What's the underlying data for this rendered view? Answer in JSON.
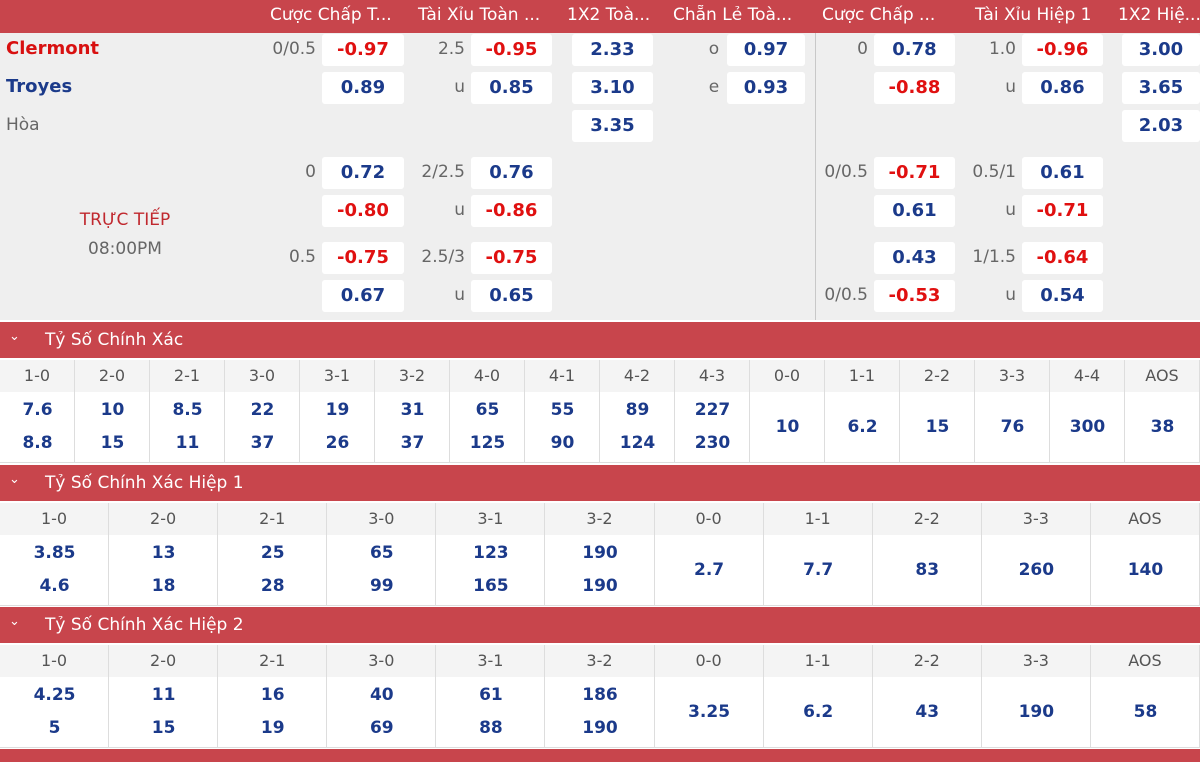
{
  "header": {
    "columns": [
      "Cược Chấp T...",
      "Tài Xỉu Toàn ...",
      "1X2 Toà...",
      "Chẵn Lẻ Toà...",
      "Cược Chấp ...",
      "Tài Xỉu Hiệp 1",
      "1X2 Hiệ..."
    ]
  },
  "match": {
    "home": "Clermont",
    "away": "Troyes",
    "draw": "Hòa",
    "status": "TRỰC TIẾP",
    "time": "08:00PM"
  },
  "odds_rows": [
    [
      "0/0.5",
      "-0.97",
      "2.5",
      "-0.95",
      "2.33",
      "o",
      "0.97",
      "0",
      "0.78",
      "1.0",
      "-0.96",
      "3.00"
    ],
    [
      null,
      "0.89",
      "u",
      "0.85",
      "3.10",
      "e",
      "0.93",
      null,
      "-0.88",
      "u",
      "0.86",
      "3.65"
    ],
    [
      null,
      null,
      null,
      null,
      "3.35",
      null,
      null,
      null,
      null,
      null,
      null,
      "2.03"
    ],
    [
      "0",
      "0.72",
      "2/2.5",
      "0.76",
      null,
      null,
      null,
      "0/0.5",
      "-0.71",
      "0.5/1",
      "0.61",
      null
    ],
    [
      null,
      "-0.80",
      "u",
      "-0.86",
      null,
      null,
      null,
      null,
      "0.61",
      "u",
      "-0.71",
      null
    ],
    [
      "0.5",
      "-0.75",
      "2.5/3",
      "-0.75",
      null,
      null,
      null,
      null,
      "0.43",
      "1/1.5",
      "-0.64",
      null
    ],
    [
      null,
      "0.67",
      "u",
      "0.65",
      null,
      null,
      null,
      "0/0.5",
      "-0.53",
      "u",
      "0.54",
      null
    ]
  ],
  "sections": [
    {
      "title": "Tỷ Số Chính Xác",
      "scores": [
        {
          "label": "1-0",
          "values": [
            "7.6",
            "8.8"
          ]
        },
        {
          "label": "2-0",
          "values": [
            "10",
            "15"
          ]
        },
        {
          "label": "2-1",
          "values": [
            "8.5",
            "11"
          ]
        },
        {
          "label": "3-0",
          "values": [
            "22",
            "37"
          ]
        },
        {
          "label": "3-1",
          "values": [
            "19",
            "26"
          ]
        },
        {
          "label": "3-2",
          "values": [
            "31",
            "37"
          ]
        },
        {
          "label": "4-0",
          "values": [
            "65",
            "125"
          ]
        },
        {
          "label": "4-1",
          "values": [
            "55",
            "90"
          ]
        },
        {
          "label": "4-2",
          "values": [
            "89",
            "124"
          ]
        },
        {
          "label": "4-3",
          "values": [
            "227",
            "230"
          ]
        },
        {
          "label": "0-0",
          "values": [
            "10"
          ]
        },
        {
          "label": "1-1",
          "values": [
            "6.2"
          ]
        },
        {
          "label": "2-2",
          "values": [
            "15"
          ]
        },
        {
          "label": "3-3",
          "values": [
            "76"
          ]
        },
        {
          "label": "4-4",
          "values": [
            "300"
          ]
        },
        {
          "label": "AOS",
          "values": [
            "38"
          ]
        }
      ]
    },
    {
      "title": "Tỷ Số Chính Xác Hiệp 1",
      "scores": [
        {
          "label": "1-0",
          "values": [
            "3.85",
            "4.6"
          ]
        },
        {
          "label": "2-0",
          "values": [
            "13",
            "18"
          ]
        },
        {
          "label": "2-1",
          "values": [
            "25",
            "28"
          ]
        },
        {
          "label": "3-0",
          "values": [
            "65",
            "99"
          ]
        },
        {
          "label": "3-1",
          "values": [
            "123",
            "165"
          ]
        },
        {
          "label": "3-2",
          "values": [
            "190",
            "190"
          ]
        },
        {
          "label": "0-0",
          "values": [
            "2.7"
          ]
        },
        {
          "label": "1-1",
          "values": [
            "7.7"
          ]
        },
        {
          "label": "2-2",
          "values": [
            "83"
          ]
        },
        {
          "label": "3-3",
          "values": [
            "260"
          ]
        },
        {
          "label": "AOS",
          "values": [
            "140"
          ]
        }
      ]
    },
    {
      "title": "Tỷ Số Chính Xác Hiệp 2",
      "scores": [
        {
          "label": "1-0",
          "values": [
            "4.25",
            "5"
          ]
        },
        {
          "label": "2-0",
          "values": [
            "11",
            "15"
          ]
        },
        {
          "label": "2-1",
          "values": [
            "16",
            "19"
          ]
        },
        {
          "label": "3-0",
          "values": [
            "40",
            "69"
          ]
        },
        {
          "label": "3-1",
          "values": [
            "61",
            "88"
          ]
        },
        {
          "label": "3-2",
          "values": [
            "186",
            "190"
          ]
        },
        {
          "label": "0-0",
          "values": [
            "3.25"
          ]
        },
        {
          "label": "1-1",
          "values": [
            "6.2"
          ]
        },
        {
          "label": "2-2",
          "values": [
            "43"
          ]
        },
        {
          "label": "3-3",
          "values": [
            "190"
          ]
        },
        {
          "label": "AOS",
          "values": [
            "58"
          ]
        }
      ]
    }
  ]
}
